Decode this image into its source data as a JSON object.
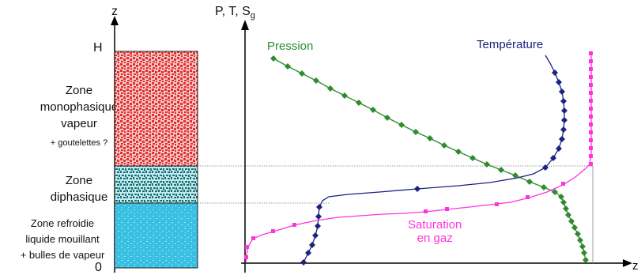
{
  "left_panel": {
    "axis_label": "z",
    "top_label": "H",
    "bottom_label": "0",
    "zone_vapor": {
      "line1": "Zone",
      "line2": "monophasique",
      "line3": "vapeur",
      "note": "+ goutelettes ?"
    },
    "zone_diphasic": {
      "line1": "Zone",
      "line2": "diphasique"
    },
    "zone_cooled": {
      "line1": "Zone refroidie",
      "line2": "liquide mouillant",
      "line3": "+ bulles de vapeur"
    }
  },
  "right_panel": {
    "y_axis_label": "P, T, S",
    "y_axis_subscript": "g",
    "x_axis_label": "z",
    "curve_labels": {
      "pressure": "Pression",
      "temperature": "Température",
      "saturation_line1": "Saturation",
      "saturation_line2": "en gaz"
    }
  },
  "colors": {
    "pressure": "#2e8b2e",
    "temperature": "#1a237e",
    "saturation": "#ff33dd",
    "vapor_zone": "#e83b3b",
    "diphasic_zone": "#2a9a8a",
    "cooled_zone": "#33bde0",
    "guide_line": "#888888"
  }
}
